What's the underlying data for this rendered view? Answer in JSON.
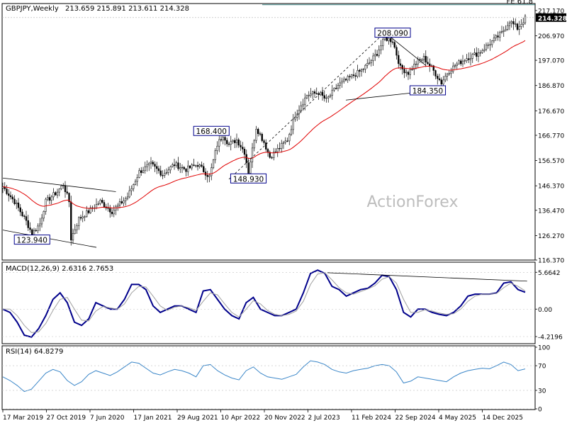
{
  "header": {
    "symbol": "GBPJPY,Weekly",
    "ohlc": "213.659 215.891 213.611 214.328"
  },
  "watermark": "ActionForex",
  "colors": {
    "candle": "#000000",
    "ema": "#e00000",
    "macd": "#00008b",
    "signal": "#a0a0a0",
    "rsi": "#3a86c8",
    "fe_line": "#006060",
    "trendline": "#000000",
    "label_border": "#00008b",
    "price_tag_bg": "#000000"
  },
  "chart_data": [
    {
      "type": "candlestick",
      "panel": "price",
      "ylim": [
        116.37,
        220.0
      ],
      "y_ticks": [
        "217.170",
        "206.970",
        "197.070",
        "186.870",
        "176.670",
        "166.770",
        "156.570",
        "146.370",
        "136.470",
        "126.270",
        "116.370"
      ],
      "current_price": "214.328",
      "fib_line": {
        "label": "FE 61.8",
        "value": 219.5
      },
      "x_ticks": [
        "17 Mar 2019",
        "27 Oct 2019",
        "7 Jun 2020",
        "17 Jan 2021",
        "29 Aug 2021",
        "10 Apr 2022",
        "20 Nov 2022",
        "2 Jul 2023",
        "11 Feb 2024",
        "22 Sep 2024",
        "4 May 2025",
        "14 Dec 2025"
      ],
      "anchors": [
        {
          "week": 0,
          "price": 146
        },
        {
          "week": 6,
          "price": 140
        },
        {
          "week": 12,
          "price": 132
        },
        {
          "week": 15,
          "price": 127
        },
        {
          "week": 19,
          "price": 131
        },
        {
          "week": 22,
          "price": 140
        },
        {
          "week": 28,
          "price": 144
        },
        {
          "week": 31,
          "price": 147
        },
        {
          "week": 34,
          "price": 140
        },
        {
          "week": 35,
          "price": 125
        },
        {
          "week": 39,
          "price": 133
        },
        {
          "week": 44,
          "price": 136
        },
        {
          "week": 50,
          "price": 140
        },
        {
          "week": 56,
          "price": 136
        },
        {
          "week": 64,
          "price": 142
        },
        {
          "week": 70,
          "price": 152
        },
        {
          "week": 76,
          "price": 155
        },
        {
          "week": 82,
          "price": 151
        },
        {
          "week": 88,
          "price": 155
        },
        {
          "week": 94,
          "price": 153
        },
        {
          "week": 100,
          "price": 155
        },
        {
          "week": 106,
          "price": 150
        },
        {
          "week": 110,
          "price": 163
        },
        {
          "week": 113,
          "price": 167
        },
        {
          "week": 116,
          "price": 163
        },
        {
          "week": 120,
          "price": 165
        },
        {
          "week": 124,
          "price": 160
        },
        {
          "week": 126,
          "price": 152
        },
        {
          "week": 130,
          "price": 170
        },
        {
          "week": 134,
          "price": 164
        },
        {
          "week": 137,
          "price": 158
        },
        {
          "week": 141,
          "price": 161
        },
        {
          "week": 146,
          "price": 165
        },
        {
          "week": 150,
          "price": 175
        },
        {
          "week": 156,
          "price": 183
        },
        {
          "week": 162,
          "price": 184
        },
        {
          "week": 166,
          "price": 181
        },
        {
          "week": 172,
          "price": 187
        },
        {
          "week": 178,
          "price": 190
        },
        {
          "week": 184,
          "price": 193
        },
        {
          "week": 188,
          "price": 196
        },
        {
          "week": 192,
          "price": 200
        },
        {
          "week": 196,
          "price": 206
        },
        {
          "week": 200,
          "price": 205
        },
        {
          "week": 204,
          "price": 194
        },
        {
          "week": 208,
          "price": 192
        },
        {
          "week": 212,
          "price": 196
        },
        {
          "week": 216,
          "price": 198
        },
        {
          "week": 220,
          "price": 194
        },
        {
          "week": 225,
          "price": 188
        },
        {
          "week": 228,
          "price": 192
        },
        {
          "week": 232,
          "price": 195
        },
        {
          "week": 238,
          "price": 198
        },
        {
          "week": 244,
          "price": 200
        },
        {
          "week": 250,
          "price": 204
        },
        {
          "week": 256,
          "price": 208
        },
        {
          "week": 260,
          "price": 213
        },
        {
          "week": 264,
          "price": 210
        },
        {
          "week": 268,
          "price": 214
        }
      ],
      "annotations": [
        {
          "label": "123.940",
          "week": 15,
          "price": 124.5
        },
        {
          "label": "168.400",
          "week": 107,
          "price": 168.4
        },
        {
          "label": "148.930",
          "week": 126,
          "price": 149.2
        },
        {
          "label": "208.090",
          "week": 200,
          "price": 208.1
        },
        {
          "label": "184.350",
          "week": 218,
          "price": 184.8
        }
      ]
    },
    {
      "type": "line",
      "panel": "macd",
      "title": "MACD(12,26,9) 2.6316 2.7653",
      "ylim": [
        -5.2,
        7.0
      ],
      "y_ticks": [
        {
          "label": "5.6642",
          "value": 5.6642
        },
        {
          "label": "0.00",
          "value": 0
        },
        {
          "label": "-4.2196",
          "value": -4.2196
        }
      ],
      "series": [
        {
          "values": [
            0,
            -0.5,
            -2,
            -4,
            -4.3,
            -3,
            -1,
            1.5,
            2.5,
            1,
            -2,
            -2.5,
            -1.5,
            1,
            0.5,
            0,
            0,
            1.5,
            3.8,
            3.8,
            3,
            0.5,
            -0.5,
            0,
            0.5,
            0.5,
            0,
            -0.5,
            2.8,
            3,
            1.5,
            0,
            -1,
            -1.5,
            1,
            1.8,
            0,
            -0.5,
            -1,
            -1,
            -0.5,
            0,
            2.5,
            5.5,
            6,
            5.5,
            3.5,
            3,
            2,
            2.5,
            3,
            3.2,
            4,
            5.2,
            5,
            3,
            -0.5,
            -1.2,
            0,
            0,
            -0.5,
            -0.8,
            -1,
            -0.5,
            0.5,
            2,
            2.3,
            2.3,
            2.3,
            2.5,
            4,
            4.2,
            3,
            2.6
          ]
        },
        {
          "values": [
            0,
            0,
            -1,
            -2.5,
            -3.6,
            -3.5,
            -2.2,
            -0.2,
            1.5,
            1.8,
            0,
            -1.7,
            -1.8,
            -0.3,
            0.4,
            0.2,
            0,
            0.8,
            2.5,
            3.5,
            3.4,
            2,
            0.5,
            -0.2,
            0.3,
            0.5,
            0.2,
            -0.2,
            1.2,
            2.5,
            2.2,
            0.8,
            -0.5,
            -1.2,
            0,
            1.3,
            0.8,
            -0.2,
            -0.8,
            -1,
            -0.8,
            -0.3,
            1.2,
            3.8,
            5.4,
            5.6,
            4.5,
            3.3,
            2.5,
            2.3,
            2.7,
            3.1,
            3.6,
            4.6,
            5,
            4,
            1.5,
            -0.5,
            -0.5,
            -0.1,
            -0.3,
            -0.6,
            -0.8,
            -0.7,
            0,
            1.2,
            2,
            2.3,
            2.3,
            2.4,
            3.3,
            4,
            3.5,
            2.8
          ]
        }
      ],
      "trendline": {
        "from": {
          "pos": 0.61,
          "value": 5.6
        },
        "to": {
          "pos": 0.985,
          "value": 4.3
        }
      }
    },
    {
      "type": "line",
      "panel": "rsi",
      "title": "RSI(14) 64.8279",
      "ylim": [
        0,
        100
      ],
      "y_ticks": [
        {
          "label": "100",
          "value": 100
        },
        {
          "label": "70",
          "value": 70
        },
        {
          "label": "30",
          "value": 30
        },
        {
          "label": "0",
          "value": 0
        }
      ],
      "series": [
        {
          "values": [
            52,
            46,
            38,
            28,
            32,
            45,
            58,
            64,
            60,
            46,
            38,
            44,
            56,
            62,
            58,
            54,
            60,
            68,
            76,
            74,
            66,
            58,
            55,
            60,
            64,
            62,
            58,
            52,
            70,
            72,
            62,
            55,
            50,
            47,
            62,
            68,
            58,
            52,
            50,
            48,
            52,
            56,
            68,
            78,
            76,
            72,
            64,
            60,
            58,
            62,
            64,
            66,
            70,
            72,
            70,
            60,
            42,
            45,
            52,
            50,
            48,
            46,
            44,
            52,
            58,
            62,
            64,
            66,
            65,
            70,
            76,
            72,
            62,
            64.8
          ]
        }
      ]
    }
  ]
}
